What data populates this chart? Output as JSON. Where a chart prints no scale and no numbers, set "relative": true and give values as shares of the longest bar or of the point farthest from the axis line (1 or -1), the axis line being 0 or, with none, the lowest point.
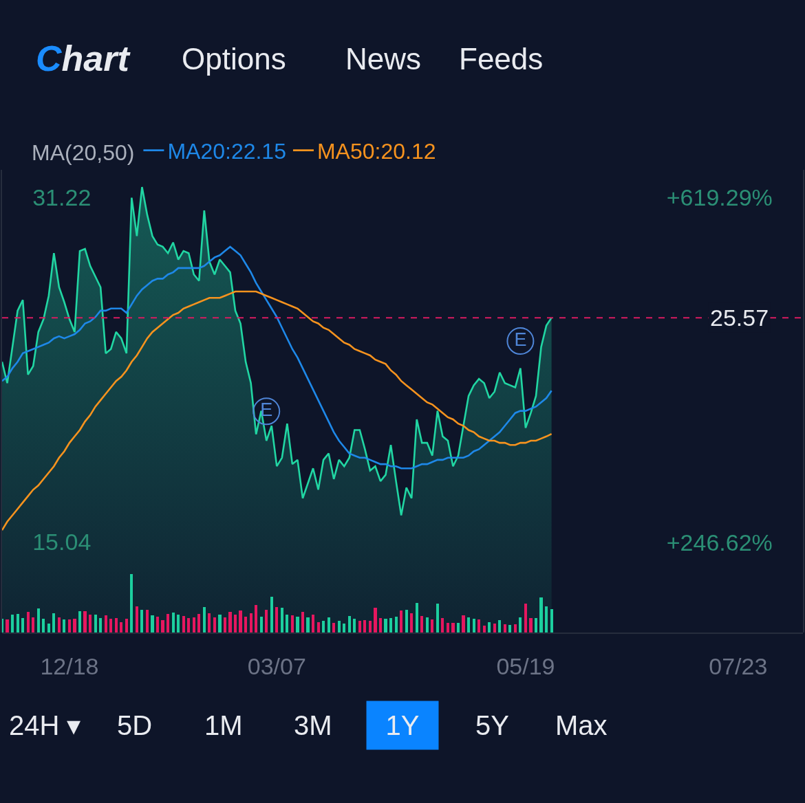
{
  "chart_data": [
    {
      "type": "line",
      "legend_title": "MA(20,50)",
      "legend": "top left",
      "tick_labels": "y",
      "categories": [
        null,
        null,
        null,
        null,
        null,
        null,
        null,
        null,
        null,
        null,
        null,
        null,
        null,
        null,
        null,
        null,
        null,
        null,
        null,
        null,
        null,
        null,
        null,
        null,
        null,
        null,
        null,
        null,
        null,
        null,
        null,
        null,
        null,
        null,
        null,
        null,
        null,
        null,
        null,
        null,
        null,
        null,
        null,
        null,
        null,
        null,
        null,
        null,
        null,
        null,
        null,
        null,
        null,
        null,
        null,
        null,
        null,
        null,
        null,
        null,
        null,
        null,
        null,
        null,
        null,
        null,
        null,
        null,
        null,
        null,
        null,
        null,
        null,
        null,
        null,
        null,
        null,
        null,
        null,
        null,
        null,
        null,
        null,
        null,
        null,
        null,
        null,
        null,
        null,
        null,
        null,
        null,
        null,
        null,
        null,
        null,
        null,
        null,
        null,
        null,
        null,
        null,
        null,
        null,
        null,
        null,
        null,
        null,
        null,
        null,
        null,
        null,
        null,
        null,
        null,
        null,
        null,
        null,
        null,
        null,
        null,
        null,
        null,
        null,
        null,
        null,
        null,
        null,
        null,
        null,
        null,
        null,
        null,
        null,
        null,
        null,
        null,
        null,
        null,
        null,
        null,
        null,
        null,
        null,
        null,
        null,
        null,
        null,
        null,
        null,
        null,
        null,
        null,
        null,
        null
      ],
      "ylim": [
        10.8,
        32.5
      ],
      "yticks": [
        31.22,
        15.04
      ],
      "y2lim": [
        149.0,
        648.8
      ],
      "y2ticks": [
        {
          "value": 619.29,
          "label": "+619.29%"
        },
        {
          "value": 246.62,
          "label": "+246.62%"
        }
      ],
      "series": [
        {
          "type": "area",
          "color": "#21d6a3",
          "values": [
            23.5,
            22.5,
            24.2,
            25.9,
            26.4,
            22.9,
            23.3,
            24.9,
            25.5,
            26.6,
            28.6,
            27.0,
            26.3,
            25.5,
            24.9,
            28.7,
            28.8,
            28.0,
            27.5,
            27.0,
            23.9,
            24.1,
            24.9,
            24.6,
            23.9,
            31.2,
            29.4,
            31.7,
            30.4,
            29.4,
            29.0,
            28.9,
            28.6,
            29.1,
            28.3,
            28.7,
            28.6,
            27.6,
            27.3,
            30.6,
            28.2,
            27.6,
            28.3,
            28.0,
            27.7,
            25.9,
            25.3,
            23.5,
            22.5,
            20.1,
            21.2,
            19.8,
            20.5,
            18.6,
            19.0,
            20.6,
            18.7,
            18.9,
            17.1,
            17.8,
            18.5,
            17.5,
            18.9,
            19.2,
            18.0,
            18.9,
            18.6,
            19.0,
            20.3,
            20.3,
            19.4,
            18.4,
            18.6,
            17.9,
            18.2,
            19.6,
            17.9,
            16.3,
            17.6,
            17.1,
            20.8,
            19.7,
            19.7,
            19.1,
            21.2,
            20.0,
            19.8,
            18.6,
            19.1,
            20.5,
            21.9,
            22.4,
            22.7,
            22.5,
            21.8,
            22.1,
            23.0,
            22.5,
            22.4,
            22.3,
            23.2,
            20.4,
            21.1,
            21.9,
            24.2,
            25.2,
            25.57,
            null,
            null,
            null,
            null,
            null,
            null,
            null,
            null,
            null,
            null,
            null,
            null,
            null,
            null,
            null,
            null,
            null,
            null,
            null,
            null,
            null,
            null,
            null,
            null,
            null,
            null,
            null,
            null,
            null,
            null,
            null,
            null,
            null,
            null,
            null,
            null,
            null,
            null,
            null,
            null,
            null,
            null,
            null,
            null,
            null,
            null,
            null,
            null
          ]
        },
        {
          "name": "MA20:22.15",
          "color": "#1e88e8",
          "values": [
            22.6,
            22.8,
            23.2,
            23.5,
            23.9,
            24.0,
            24.1,
            24.2,
            24.3,
            24.4,
            24.6,
            24.7,
            24.6,
            24.7,
            24.8,
            25.0,
            25.3,
            25.4,
            25.6,
            25.9,
            25.9,
            26.0,
            26.0,
            26.0,
            25.8,
            26.2,
            26.6,
            26.9,
            27.1,
            27.3,
            27.4,
            27.4,
            27.6,
            27.7,
            27.9,
            27.9,
            27.9,
            27.9,
            27.9,
            28.0,
            28.2,
            28.4,
            28.5,
            28.7,
            28.9,
            28.7,
            28.5,
            28.1,
            27.7,
            27.2,
            26.8,
            26.4,
            26.0,
            25.6,
            25.1,
            24.6,
            24.1,
            23.7,
            23.2,
            22.7,
            22.2,
            21.7,
            21.2,
            20.7,
            20.2,
            19.8,
            19.5,
            19.2,
            19.1,
            19.0,
            19.0,
            18.9,
            18.8,
            18.7,
            18.7,
            18.6,
            18.6,
            18.5,
            18.5,
            18.5,
            18.6,
            18.7,
            18.7,
            18.8,
            18.9,
            18.9,
            19.0,
            19.0,
            19.0,
            19.0,
            19.1,
            19.3,
            19.4,
            19.6,
            19.8,
            20.0,
            20.2,
            20.5,
            20.8,
            21.1,
            21.2,
            21.2,
            21.3,
            21.4,
            21.6,
            21.8,
            22.15,
            null,
            null,
            null,
            null,
            null,
            null,
            null,
            null,
            null,
            null,
            null,
            null,
            null,
            null,
            null,
            null,
            null,
            null,
            null,
            null,
            null,
            null,
            null,
            null,
            null,
            null,
            null,
            null,
            null,
            null,
            null,
            null,
            null,
            null,
            null,
            null,
            null,
            null,
            null,
            null,
            null,
            null,
            null,
            null,
            null,
            null,
            null,
            null
          ]
        },
        {
          "name": "MA50:20.12",
          "color": "#f7931e",
          "values": [
            15.6,
            16.0,
            16.3,
            16.6,
            16.9,
            17.2,
            17.5,
            17.7,
            18.0,
            18.3,
            18.6,
            19.0,
            19.3,
            19.7,
            20.0,
            20.3,
            20.7,
            21.0,
            21.4,
            21.7,
            22.0,
            22.3,
            22.6,
            22.8,
            23.1,
            23.5,
            23.8,
            24.2,
            24.6,
            24.9,
            25.1,
            25.3,
            25.5,
            25.7,
            25.8,
            26.0,
            26.1,
            26.2,
            26.3,
            26.4,
            26.5,
            26.5,
            26.5,
            26.6,
            26.7,
            26.8,
            26.8,
            26.8,
            26.8,
            26.8,
            26.7,
            26.6,
            26.5,
            26.4,
            26.3,
            26.2,
            26.1,
            26.0,
            25.8,
            25.6,
            25.4,
            25.3,
            25.1,
            25.0,
            24.8,
            24.6,
            24.4,
            24.3,
            24.1,
            24.0,
            23.9,
            23.8,
            23.6,
            23.5,
            23.4,
            23.1,
            22.9,
            22.6,
            22.4,
            22.2,
            22.0,
            21.8,
            21.6,
            21.5,
            21.3,
            21.1,
            20.9,
            20.8,
            20.6,
            20.5,
            20.3,
            20.2,
            20.0,
            19.9,
            19.8,
            19.8,
            19.7,
            19.7,
            19.6,
            19.6,
            19.7,
            19.7,
            19.8,
            19.8,
            19.9,
            20.0,
            20.12,
            null,
            null,
            null,
            null,
            null,
            null,
            null,
            null,
            null,
            null,
            null,
            null,
            null,
            null,
            null,
            null,
            null,
            null,
            null,
            null,
            null,
            null,
            null,
            null,
            null,
            null,
            null,
            null,
            null,
            null,
            null,
            null,
            null,
            null,
            null,
            null,
            null,
            null,
            null,
            null,
            null,
            null,
            null,
            null,
            null,
            null,
            null,
            null
          ]
        },
        {
          "type": "scatter",
          "axis": "y2",
          "marker": "circle",
          "color": "#4f86d8",
          "values": [
            null,
            null,
            null,
            null,
            null,
            null,
            null,
            null,
            null,
            null,
            null,
            null,
            null,
            null,
            null,
            null,
            null,
            null,
            null,
            null,
            null,
            null,
            null,
            null,
            null,
            null,
            null,
            null,
            null,
            null,
            null,
            null,
            null,
            null,
            null,
            null,
            null,
            null,
            null,
            null,
            null,
            null,
            null,
            null,
            null,
            null,
            null,
            null,
            null,
            null,
            null,
            388,
            null,
            null,
            null,
            null,
            null,
            null,
            null,
            null,
            null,
            null,
            null,
            null,
            null,
            null,
            null,
            null,
            null,
            null,
            null,
            null,
            null,
            null,
            null,
            null,
            null,
            null,
            null,
            null,
            null,
            null,
            null,
            null,
            null,
            null,
            null,
            null,
            null,
            null,
            null,
            null,
            null,
            null,
            null,
            null,
            null,
            null,
            null,
            null,
            464,
            null,
            null,
            null,
            null,
            null,
            null,
            null,
            null,
            null,
            null,
            null,
            null,
            null,
            null,
            null,
            null,
            null,
            null,
            null,
            null,
            null,
            null,
            null,
            null,
            null,
            null,
            null,
            null,
            null,
            null,
            null,
            null,
            null,
            null,
            null,
            null,
            null,
            null,
            null,
            null,
            null,
            null,
            null,
            null,
            null,
            null,
            null,
            null,
            null,
            null,
            null,
            null,
            null,
            null
          ],
          "value_labels": [
            null,
            null,
            null,
            null,
            null,
            null,
            null,
            null,
            null,
            null,
            null,
            null,
            null,
            null,
            null,
            null,
            null,
            null,
            null,
            null,
            null,
            null,
            null,
            null,
            null,
            null,
            null,
            null,
            null,
            null,
            null,
            null,
            null,
            null,
            null,
            null,
            null,
            null,
            null,
            null,
            null,
            null,
            null,
            null,
            null,
            null,
            null,
            null,
            null,
            null,
            null,
            "E",
            null,
            null,
            null,
            null,
            null,
            null,
            null,
            null,
            null,
            null,
            null,
            null,
            null,
            null,
            null,
            null,
            null,
            null,
            null,
            null,
            null,
            null,
            null,
            null,
            null,
            null,
            null,
            null,
            null,
            null,
            null,
            null,
            null,
            null,
            null,
            null,
            null,
            null,
            null,
            null,
            null,
            null,
            null,
            null,
            null,
            null,
            null,
            null,
            "E",
            null,
            null,
            null,
            null,
            null,
            null,
            null,
            null,
            null,
            null,
            null,
            null,
            null,
            null,
            null,
            null,
            null,
            null,
            null,
            null,
            null,
            null,
            null,
            null,
            null,
            null,
            null,
            null,
            null,
            null,
            null,
            null,
            null,
            null,
            null,
            null,
            null,
            null,
            null,
            null,
            null,
            null,
            null,
            null,
            null,
            null,
            null,
            null,
            null,
            null,
            null,
            null,
            null,
            null
          ]
        }
      ],
      "ref_lines": [
        {
          "axis": "y",
          "value": 25.57,
          "label": "25.57",
          "color": "#d81b60",
          "line_style": "dashed"
        }
      ],
      "annotations": [
        "Chart",
        "Options",
        "News",
        "Feeds"
      ]
    },
    {
      "type": "bar",
      "relative": true,
      "tick_labels": "x",
      "categories": [
        null,
        null,
        null,
        null,
        null,
        null,
        null,
        null,
        null,
        null,
        null,
        null,
        null,
        "12/18",
        null,
        null,
        null,
        null,
        null,
        null,
        null,
        null,
        null,
        null,
        null,
        null,
        null,
        null,
        null,
        null,
        null,
        null,
        null,
        null,
        null,
        null,
        null,
        null,
        null,
        null,
        null,
        null,
        null,
        null,
        null,
        null,
        null,
        null,
        null,
        null,
        null,
        null,
        null,
        "03/07",
        null,
        null,
        null,
        null,
        null,
        null,
        null,
        null,
        null,
        null,
        null,
        null,
        null,
        null,
        null,
        null,
        null,
        null,
        null,
        null,
        null,
        null,
        null,
        null,
        null,
        null,
        null,
        null,
        null,
        null,
        null,
        null,
        null,
        null,
        null,
        null,
        null,
        null,
        null,
        null,
        null,
        null,
        null,
        null,
        null,
        null,
        null,
        "05/19",
        null,
        null,
        null,
        null,
        null,
        null,
        null,
        null,
        null,
        null,
        null,
        null,
        null,
        null,
        null,
        null,
        null,
        null,
        null,
        null,
        null,
        null,
        null,
        null,
        null,
        null,
        null,
        null,
        null,
        null,
        null,
        null,
        null,
        null,
        null,
        null,
        null,
        null,
        null,
        null,
        "07/23",
        null,
        null,
        null,
        null,
        null,
        null,
        null,
        null,
        null,
        null,
        null,
        null
      ],
      "values": [
        0.24,
        0.22,
        0.31,
        0.32,
        0.25,
        0.35,
        0.26,
        0.41,
        0.24,
        0.15,
        0.33,
        0.26,
        0.22,
        0.22,
        0.23,
        0.36,
        0.36,
        0.31,
        0.31,
        0.25,
        0.3,
        0.23,
        0.25,
        0.18,
        0.24,
        1,
        0.45,
        0.39,
        0.39,
        0.29,
        0.27,
        0.21,
        0.32,
        0.34,
        0.31,
        0.28,
        0.25,
        0.26,
        0.32,
        0.44,
        0.33,
        0.26,
        0.31,
        0.26,
        0.35,
        0.31,
        0.38,
        0.27,
        0.33,
        0.47,
        0.27,
        0.39,
        0.61,
        0.44,
        0.42,
        0.31,
        0.3,
        0.27,
        0.35,
        0.26,
        0.31,
        0.18,
        0.2,
        0.26,
        0.17,
        0.2,
        0.15,
        0.28,
        0.23,
        0.2,
        0.21,
        0.2,
        0.42,
        0.25,
        0.23,
        0.25,
        0.27,
        0.38,
        0.39,
        0.33,
        0.51,
        0.28,
        0.26,
        0.22,
        0.49,
        0.25,
        0.16,
        0.16,
        0.16,
        0.3,
        0.26,
        0.23,
        0.22,
        0.12,
        0.18,
        0.15,
        0.21,
        0.14,
        0.13,
        0.14,
        0.26,
        0.5,
        0.25,
        0.25,
        0.6,
        0.45,
        0.4,
        null,
        null,
        null,
        null,
        null,
        null,
        null,
        null,
        null,
        null,
        null,
        null,
        null,
        null,
        null,
        null,
        null,
        null,
        null,
        null,
        null,
        null,
        null,
        null,
        null,
        null,
        null,
        null,
        null,
        null,
        null,
        null,
        null,
        null,
        null,
        null,
        null,
        null,
        null,
        null,
        null,
        null,
        null,
        null,
        null,
        null,
        null,
        null
      ],
      "colors": [
        "#1ccf9f",
        "#e6175f",
        "#1ccf9f",
        "#1ccf9f",
        "#1ccf9f",
        "#e6175f",
        "#e6175f",
        "#1ccf9f",
        "#1ccf9f",
        "#1ccf9f",
        "#1ccf9f",
        "#e6175f",
        "#1ccf9f",
        "#e6175f",
        "#e6175f",
        "#1ccf9f",
        "#e6175f",
        "#e6175f",
        "#1ccf9f",
        "#1ccf9f",
        "#e6175f",
        "#e6175f",
        "#e6175f",
        "#e6175f",
        "#e6175f",
        "#1ccf9f",
        "#e6175f",
        "#1ccf9f",
        "#e6175f",
        "#1ccf9f",
        "#e6175f",
        "#e6175f",
        "#e6175f",
        "#1ccf9f",
        "#1ccf9f",
        "#e6175f",
        "#e6175f",
        "#e6175f",
        "#e6175f",
        "#1ccf9f",
        "#e6175f",
        "#e6175f",
        "#1ccf9f",
        "#e6175f",
        "#e6175f",
        "#e6175f",
        "#e6175f",
        "#e6175f",
        "#e6175f",
        "#e6175f",
        "#1ccf9f",
        "#e6175f",
        "#1ccf9f",
        "#e6175f",
        "#1ccf9f",
        "#1ccf9f",
        "#e6175f",
        "#1ccf9f",
        "#e6175f",
        "#1ccf9f",
        "#e6175f",
        "#e6175f",
        "#1ccf9f",
        "#1ccf9f",
        "#e6175f",
        "#1ccf9f",
        "#1ccf9f",
        "#1ccf9f",
        "#1ccf9f",
        "#e6175f",
        "#e6175f",
        "#e6175f",
        "#e6175f",
        "#e6175f",
        "#1ccf9f",
        "#1ccf9f",
        "#1ccf9f",
        "#e6175f",
        "#1ccf9f",
        "#e6175f",
        "#1ccf9f",
        "#e6175f",
        "#1ccf9f",
        "#e6175f",
        "#1ccf9f",
        "#e6175f",
        "#e6175f",
        "#e6175f",
        "#1ccf9f",
        "#e6175f",
        "#1ccf9f",
        "#1ccf9f",
        "#e6175f",
        "#e6175f",
        "#1ccf9f",
        "#e6175f",
        "#1ccf9f",
        "#e6175f",
        "#1ccf9f",
        "#e6175f",
        "#1ccf9f",
        "#e6175f",
        "#e6175f",
        "#1ccf9f",
        "#1ccf9f",
        "#1ccf9f",
        "#1ccf9f",
        null,
        null,
        null,
        null,
        null,
        null,
        null,
        null,
        null,
        null,
        null,
        null,
        null,
        null,
        null,
        null,
        null,
        null,
        null,
        null,
        null,
        null,
        null,
        null,
        null,
        null,
        null,
        null,
        null,
        null,
        null,
        null,
        null,
        null,
        null,
        null,
        null,
        null,
        null,
        null,
        null,
        null,
        null,
        null,
        null,
        null,
        null,
        null
      ],
      "annotations": [
        "24H ▾",
        "5D",
        "1M",
        "3M",
        "1Y",
        "5Y",
        "Max"
      ]
    }
  ]
}
